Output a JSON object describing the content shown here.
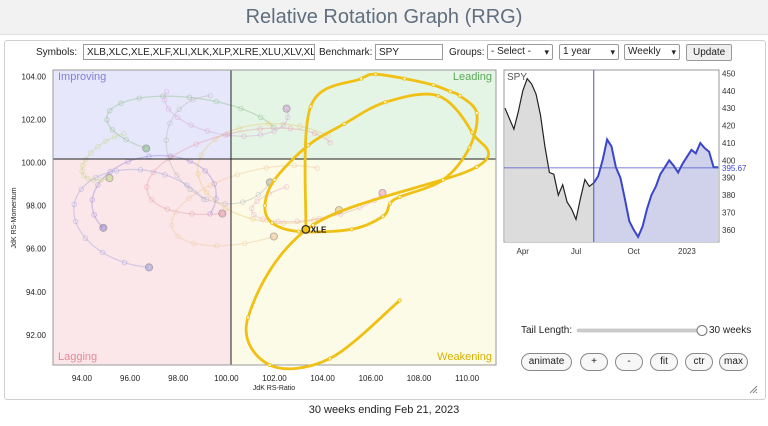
{
  "page": {
    "title": "Relative Rotation Graph (RRG)",
    "footer": "30 weeks ending Feb 21, 2023"
  },
  "toolbar": {
    "symbols_label": "Symbols:",
    "symbols_value": "XLB,XLC,XLE,XLF,XLI,XLK,XLP,XLRE,XLU,XLV,XL",
    "benchmark_label": "Benchmark:",
    "benchmark_value": "SPY",
    "groups_label": "Groups:",
    "groups_value": "- Select -",
    "period_value": "1 year",
    "interval_value": "Weekly",
    "update_label": "Update"
  },
  "controls": {
    "tail_length_label": "Tail Length:",
    "tail_length_value": "30 weeks",
    "tail_length_fraction": 1.0,
    "buttons": [
      "animate",
      "+",
      "-",
      "fit",
      "ctr",
      "max"
    ]
  },
  "colors": {
    "highlight": "#f0c015",
    "spy_line": "#3b45c9",
    "improving": "#e6e6fb",
    "leading": "#e4f5e4",
    "lagging": "#fbe6e8",
    "weakening": "#fbfbe6"
  },
  "chart_data": [
    {
      "type": "scatter",
      "title": "",
      "xlabel": "JdK RS-Ratio",
      "ylabel": "JdK RS-Momentum",
      "xlim": [
        92.8,
        111.2
      ],
      "ylim": [
        90.6,
        104.3
      ],
      "xticks": [
        "94.00",
        "96.00",
        "98.00",
        "100.00",
        "102.00",
        "104.00",
        "106.00",
        "108.00",
        "110.00"
      ],
      "yticks": [
        "92.00",
        "94.00",
        "96.00",
        "98.00",
        "100.00",
        "102.00",
        "104.00"
      ],
      "quadrants": [
        "Improving",
        "Leading",
        "Lagging",
        "Weakening"
      ],
      "highlighted_series": {
        "name": "XLE",
        "x": [
          107.2,
          104.3,
          101.8,
          100.9,
          103.6,
          110.4,
          110.2,
          108.8,
          106.6,
          104.9,
          103.4,
          102.0,
          101.6,
          101.9,
          103.0,
          105.2,
          106.5,
          106.8,
          107.2,
          109.0,
          110.1,
          110.4,
          109.7,
          109.3,
          108.6,
          107.4,
          106.2,
          105.6,
          103.5,
          103.3
        ],
        "y": [
          93.6,
          90.9,
          90.6,
          92.8,
          97.1,
          99.8,
          101.4,
          103.1,
          102.8,
          101.8,
          100.8,
          99.2,
          98.0,
          97.2,
          96.8,
          96.9,
          97.5,
          98.1,
          98.4,
          99.2,
          100.7,
          102.3,
          103.1,
          103.3,
          103.6,
          103.9,
          104.1,
          103.9,
          102.6,
          96.9
        ]
      },
      "background_series_count": 10
    },
    {
      "type": "line",
      "title": "SPY",
      "x_tick_labels": [
        "Apr",
        "Jul",
        "Oct",
        "2023"
      ],
      "y_tick_labels": [
        "360",
        "370",
        "380",
        "390",
        "400",
        "410",
        "420",
        "430",
        "440",
        "450"
      ],
      "ylim": [
        353,
        452
      ],
      "current_value_label": "395.67",
      "values": [
        430,
        424,
        418,
        428,
        440,
        447,
        444,
        438,
        426,
        408,
        393,
        392,
        380,
        386,
        376,
        372,
        366,
        378,
        389,
        385,
        387,
        391,
        400,
        412,
        408,
        396,
        390,
        378,
        365,
        360,
        356,
        362,
        372,
        380,
        385,
        392,
        396,
        400,
        397,
        393,
        398,
        402,
        406,
        404,
        410,
        407,
        405,
        396,
        396
      ]
    }
  ]
}
